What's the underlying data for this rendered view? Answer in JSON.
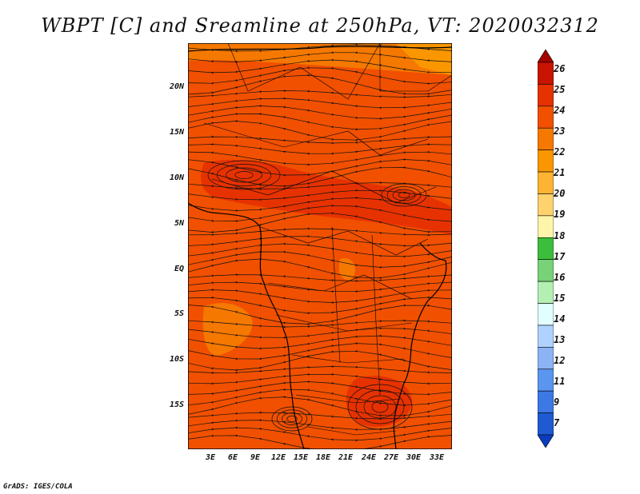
{
  "title": "WBPT [C] and Sreamline at 250hPa, VT: 2020032312",
  "y_axis": [
    "20N",
    "15N",
    "10N",
    "5N",
    "EQ",
    "5S",
    "10S",
    "15S"
  ],
  "x_axis": [
    "3E",
    "6E",
    "9E",
    "12E",
    "15E",
    "18E",
    "21E",
    "24E",
    "27E",
    "30E",
    "33E"
  ],
  "colorbar": {
    "labels": [
      "26",
      "25",
      "24",
      "23",
      "22",
      "21",
      "20",
      "19",
      "18",
      "17",
      "16",
      "15",
      "14",
      "13",
      "12",
      "11",
      "9",
      "7"
    ],
    "colors": [
      "#a50000",
      "#c81400",
      "#e63200",
      "#f05000",
      "#f57800",
      "#fa9600",
      "#fdb432",
      "#fed26e",
      "#fff5aa",
      "#3cbe3c",
      "#78d278",
      "#b4f0b4",
      "#e1ffff",
      "#afd2ff",
      "#8cb4f5",
      "#5a96f0",
      "#3c78e6",
      "#1e5ad2",
      "#0a3cbe"
    ]
  },
  "credit": "GrADS: IGES/COLA",
  "palette": {
    "field": "#f05000",
    "warm": "#e63200",
    "cool": "#f57800"
  }
}
